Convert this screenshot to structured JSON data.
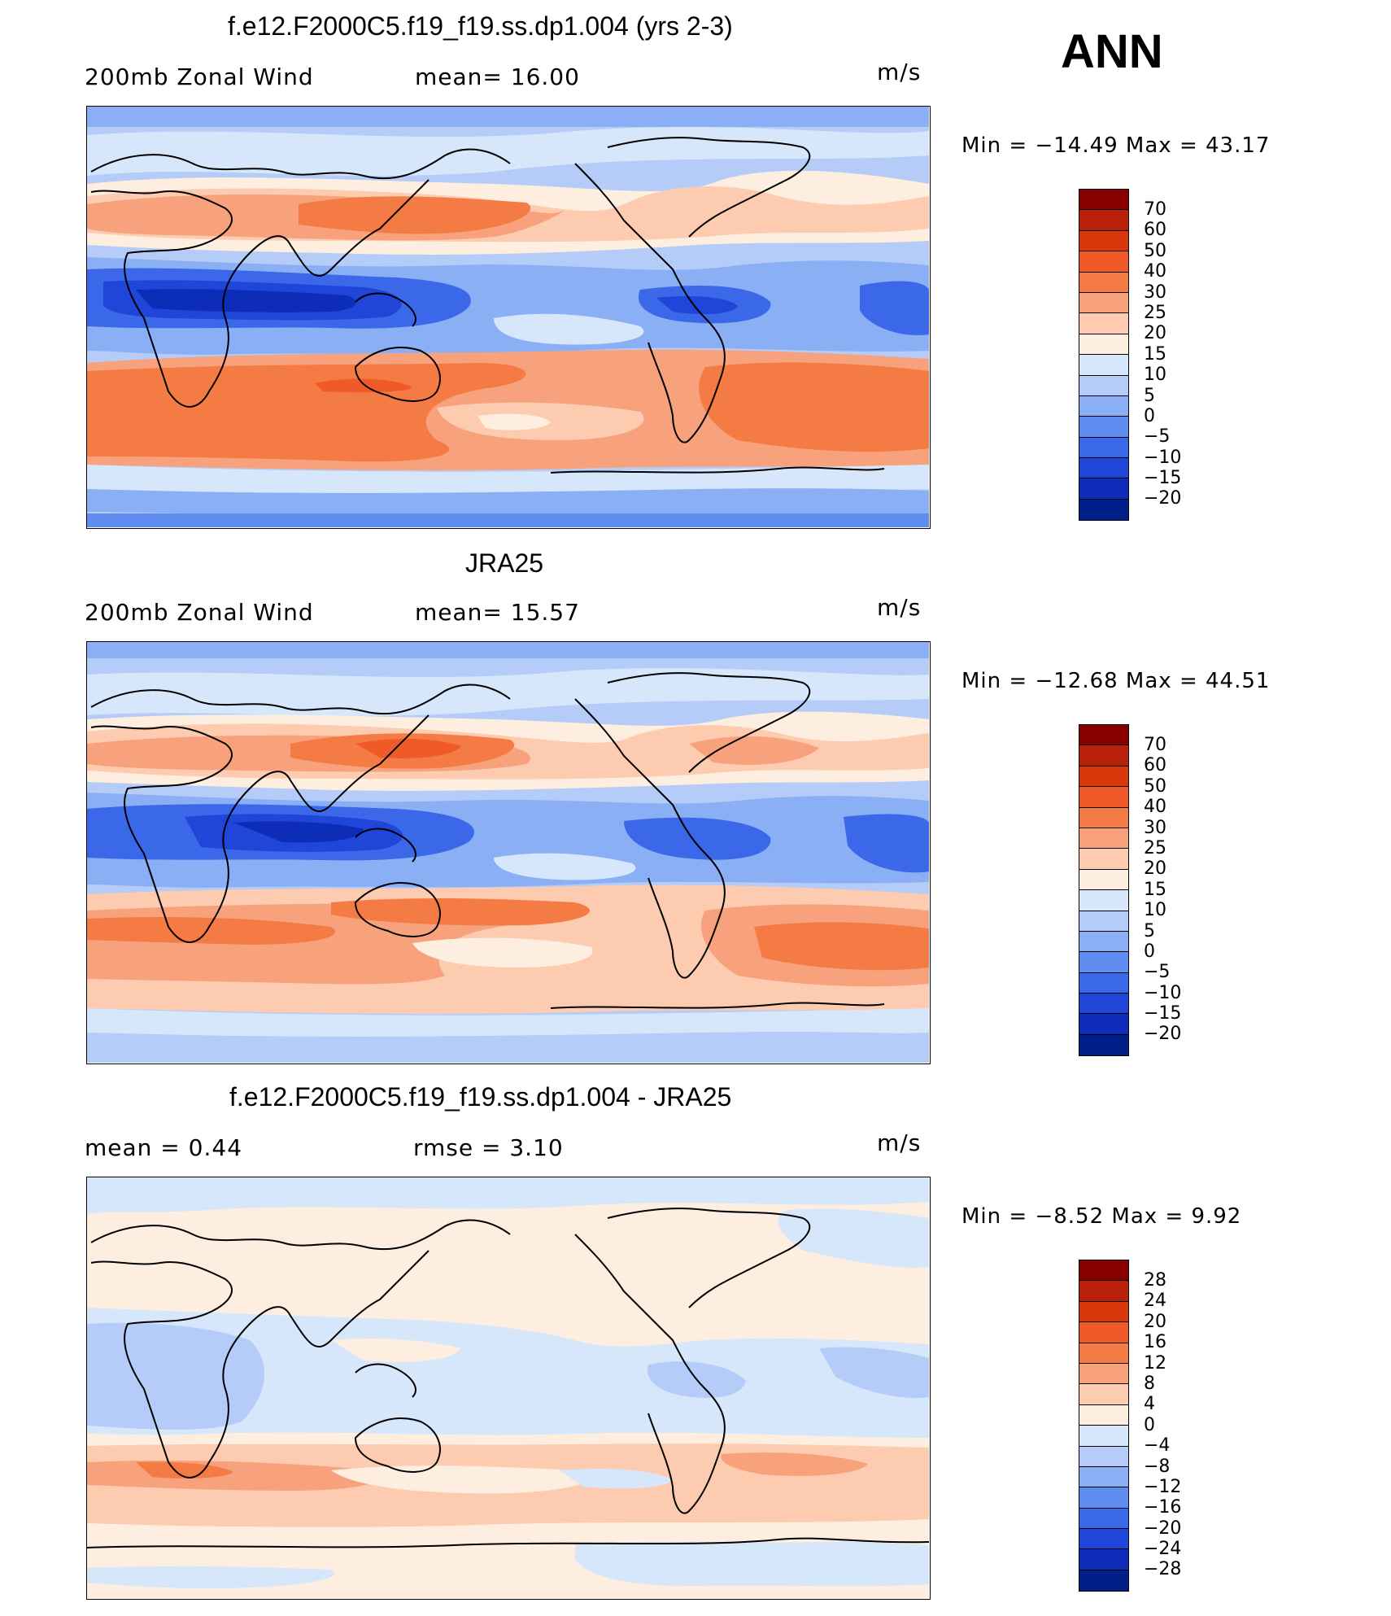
{
  "season": "ANN",
  "panels": [
    {
      "title": "f.e12.F2000C5.f19_f19.ss.dp1.004 (yrs 2-3)",
      "left_label": "200mb  Zonal  Wind",
      "mid_label": "mean=   16.00",
      "units": "m/s",
      "minmax": "Min  =  −14.49  Max  =    43.17",
      "colorbar_labels": [
        "70",
        "60",
        "50",
        "40",
        "30",
        "25",
        "20",
        "15",
        "10",
        "5",
        "0",
        "−5",
        "−10",
        "−15",
        "−20"
      ],
      "colorbar_colors": [
        "#870000",
        "#b8200a",
        "#d9380c",
        "#f05a28",
        "#f57b45",
        "#f8a27d",
        "#fccbb0",
        "#fdeee0",
        "#d7e7fb",
        "#b4ccf7",
        "#8aaff4",
        "#5f8ef0",
        "#3a68e8",
        "#1f45d9",
        "#0d2db8",
        "#001f88"
      ]
    },
    {
      "title": "JRA25",
      "left_label": "200mb  Zonal  Wind",
      "mid_label": "mean=   15.57",
      "units": "m/s",
      "minmax": "Min  =  −12.68  Max  =    44.51",
      "colorbar_labels": [
        "70",
        "60",
        "50",
        "40",
        "30",
        "25",
        "20",
        "15",
        "10",
        "5",
        "0",
        "−5",
        "−10",
        "−15",
        "−20"
      ],
      "colorbar_colors": [
        "#870000",
        "#b8200a",
        "#d9380c",
        "#f05a28",
        "#f57b45",
        "#f8a27d",
        "#fccbb0",
        "#fdeee0",
        "#d7e7fb",
        "#b4ccf7",
        "#8aaff4",
        "#5f8ef0",
        "#3a68e8",
        "#1f45d9",
        "#0d2db8",
        "#001f88"
      ]
    },
    {
      "title": "f.e12.F2000C5.f19_f19.ss.dp1.004 - JRA25",
      "left_label": "mean  =     0.44",
      "mid_label": "rmse  =     3.10",
      "units": "m/s",
      "minmax": "Min  =    −8.52  Max  =      9.92",
      "colorbar_labels": [
        "28",
        "24",
        "20",
        "16",
        "12",
        "8",
        "4",
        "0",
        "−4",
        "−8",
        "−12",
        "−16",
        "−20",
        "−24",
        "−28"
      ],
      "colorbar_colors": [
        "#870000",
        "#b8200a",
        "#d9380c",
        "#f05a28",
        "#f57b45",
        "#f8a27d",
        "#fccbb0",
        "#fdeee0",
        "#d7e7fb",
        "#b4ccf7",
        "#8aaff4",
        "#5f8ef0",
        "#3a68e8",
        "#1f45d9",
        "#0d2db8",
        "#001f88"
      ]
    }
  ]
}
